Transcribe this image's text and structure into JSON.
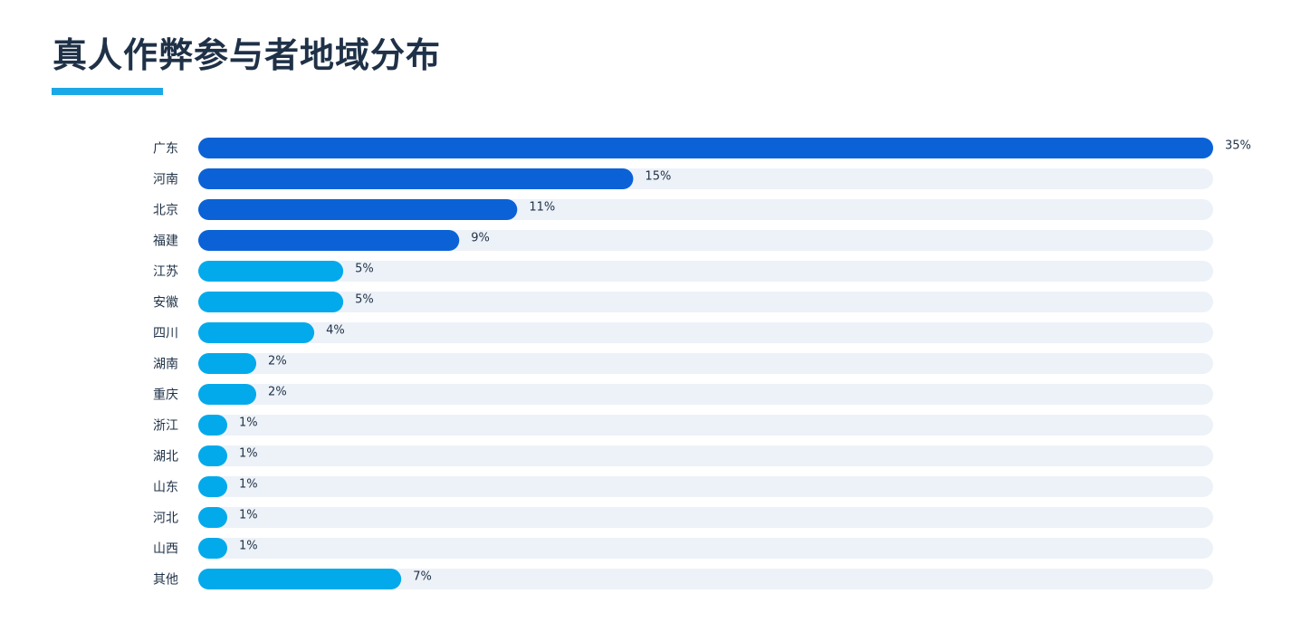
{
  "page": {
    "title": "真人作弊参与者地域分布"
  },
  "colors": {
    "title_text": "#1f3147",
    "title_underline": "#1aa9e6",
    "track": "#edf2f8",
    "bar_top": "#0a62d6",
    "bar_rest": "#03aaeb",
    "label_text": "#1f3147"
  },
  "chart_data": {
    "type": "bar",
    "orientation": "horizontal",
    "title": "真人作弊参与者地域分布",
    "xlabel": "",
    "ylabel": "",
    "xlim": [
      0,
      35
    ],
    "unit": "%",
    "grid": false,
    "legend": "none",
    "highlight_top_n": 4,
    "categories": [
      "广东",
      "河南",
      "北京",
      "福建",
      "江苏",
      "安徽",
      "四川",
      "湖南",
      "重庆",
      "浙江",
      "湖北",
      "山东",
      "河北",
      "山西",
      "其他"
    ],
    "values": [
      35,
      15,
      11,
      9,
      5,
      5,
      4,
      2,
      2,
      1,
      1,
      1,
      1,
      1,
      7
    ],
    "value_labels": [
      "35%",
      "15%",
      "11%",
      "9%",
      "5%",
      "5%",
      "4%",
      "2%",
      "2%",
      "1%",
      "1%",
      "1%",
      "1%",
      "1%",
      "7%"
    ]
  }
}
